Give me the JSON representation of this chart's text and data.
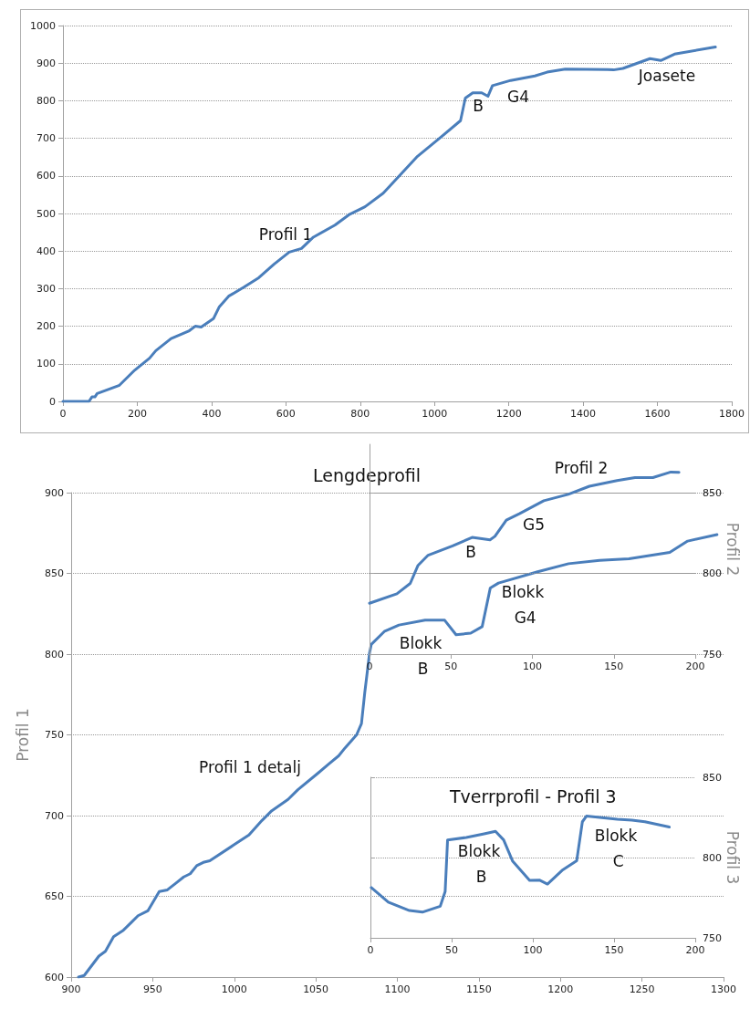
{
  "chart_data": [
    {
      "type": "line",
      "annotations": [
        "Profil 1",
        "B",
        "G4",
        "Joasete"
      ],
      "x": [
        0,
        70,
        78,
        86,
        92,
        152,
        193,
        233,
        250,
        291,
        340,
        356,
        372,
        405,
        421,
        446,
        487,
        527,
        568,
        609,
        642,
        674,
        732,
        772,
        813,
        862,
        911,
        952,
        1017,
        1070,
        1083,
        1103,
        1127,
        1144,
        1156,
        1205,
        1270,
        1303,
        1352,
        1466,
        1482,
        1507,
        1580,
        1609,
        1646,
        1756
      ],
      "values": [
        0,
        0,
        12,
        12,
        21,
        43,
        83,
        115,
        135,
        167,
        188,
        200,
        198,
        220,
        252,
        280,
        304,
        329,
        365,
        397,
        407,
        437,
        469,
        498,
        518,
        554,
        606,
        650,
        703,
        747,
        807,
        821,
        821,
        812,
        840,
        854,
        866,
        876,
        884,
        883,
        882,
        886,
        912,
        907,
        924,
        943
      ],
      "color": "#4a7ebb",
      "xlim": [
        0,
        1800
      ],
      "xticks": [
        0,
        200,
        400,
        600,
        800,
        1000,
        1200,
        1400,
        1600,
        1800
      ],
      "ylim": [
        0,
        1000
      ],
      "yticks": [
        0,
        100,
        200,
        300,
        400,
        500,
        600,
        700,
        800,
        900,
        1000
      ],
      "grid": "y",
      "marker": "none",
      "line_style": "solid"
    },
    {
      "type": "line",
      "title": "Lengdeprofil",
      "ylabel": "Profil 1",
      "annotations": [
        "Profil 1 detalj",
        "Blokk B",
        "Blokk G4"
      ],
      "x": [
        904.5,
        908,
        917,
        921,
        926,
        932,
        937,
        941,
        947,
        954,
        959,
        964,
        969,
        973,
        977,
        981,
        985,
        1000,
        1009,
        1017,
        1023,
        1033,
        1039,
        1051,
        1058,
        1064,
        1068,
        1075,
        1078,
        1080,
        1083,
        1084,
        1092,
        1101,
        1117,
        1129,
        1136,
        1145,
        1152,
        1157,
        1162,
        1186,
        1205,
        1224,
        1242,
        1267,
        1278,
        1296
      ],
      "values": [
        600,
        601,
        613,
        616,
        625,
        629,
        634,
        638,
        641,
        653,
        654,
        658,
        662,
        664,
        669,
        671,
        672,
        682,
        688,
        697,
        703,
        710,
        716,
        726,
        732,
        737,
        742,
        750,
        757,
        776,
        801,
        806,
        814,
        818,
        821,
        821,
        812,
        813,
        817,
        841,
        844,
        851,
        856,
        858,
        859,
        863,
        870,
        874
      ],
      "color": "#4a7ebb",
      "xlim": [
        900,
        1300
      ],
      "xticks": [
        900,
        950,
        1000,
        1050,
        1100,
        1150,
        1200,
        1250,
        1300
      ],
      "ylim": [
        600,
        900
      ],
      "yticks": [
        600,
        650,
        700,
        750,
        800,
        850,
        900
      ],
      "grid": "y",
      "marker": "none",
      "line_style": "solid"
    },
    {
      "type": "line",
      "y2label": "Profil 2",
      "annotations": [
        "Profil 2",
        "G5",
        "B"
      ],
      "series": [
        {
          "color": "#4a7ebb",
          "axis": "y2",
          "x": [
            0,
            16.8,
            25,
            29.8,
            36,
            51,
            63,
            74,
            77,
            84,
            92,
            107,
            122,
            135,
            152,
            163,
            174,
            185,
            190
          ],
          "values": [
            781.5,
            787.4,
            793.8,
            805,
            811.3,
            817,
            822.3,
            820.8,
            823,
            833,
            837,
            845,
            849,
            854,
            857.5,
            859.4,
            859.4,
            862.8,
            862.6
          ]
        }
      ],
      "xlim": [
        0,
        200
      ],
      "xticks": [
        0,
        50,
        100,
        150,
        200
      ],
      "y2lim": [
        750,
        880
      ],
      "y2ticks": [
        750,
        800,
        850
      ],
      "grid": "y",
      "marker": "none",
      "line_style": "solid"
    },
    {
      "type": "line",
      "title": "Tverrprofil - Profil 3",
      "y2label": "Profil 3",
      "annotations": [
        "Blokk B",
        "Blokk C"
      ],
      "series": [
        {
          "color": "#4a7ebb",
          "axis": "y2",
          "x": [
            0.5,
            11,
            24,
            32,
            43,
            46,
            47.5,
            59,
            70,
            77,
            82,
            87.6,
            98,
            104,
            109,
            118,
            127,
            130.5,
            133,
            152,
            161,
            169,
            184
          ],
          "values": [
            781.3,
            772.2,
            767,
            766,
            769.7,
            778.8,
            811,
            812.5,
            814.8,
            816.3,
            811,
            797.7,
            785.8,
            786,
            783.5,
            792,
            798,
            822.3,
            825.8,
            823.9,
            823.3,
            822.3,
            819
          ]
        }
      ],
      "xlim": [
        0,
        200
      ],
      "xticks": [
        0,
        50,
        100,
        150,
        200
      ],
      "y2lim": [
        750,
        850
      ],
      "y2ticks": [
        750,
        800,
        850
      ],
      "grid": "y",
      "marker": "none",
      "line_style": "solid"
    }
  ]
}
